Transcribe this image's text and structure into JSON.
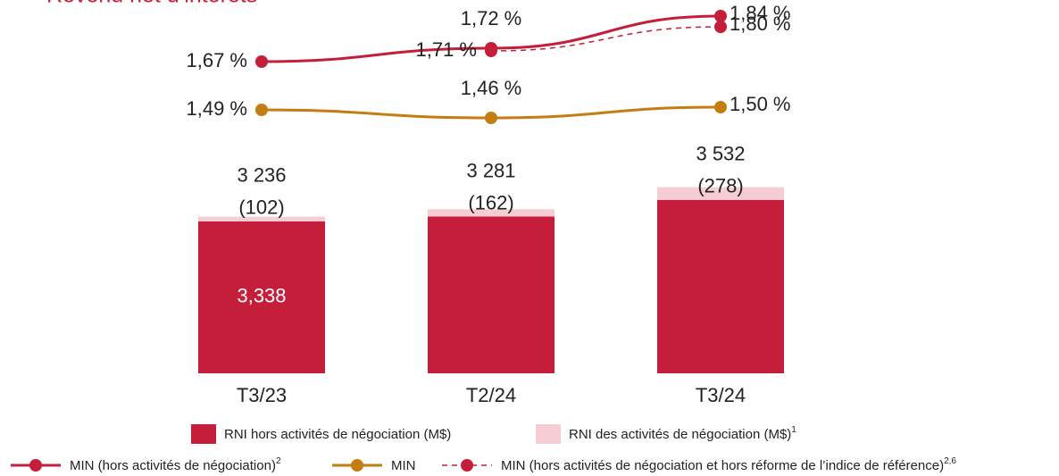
{
  "chart_data": {
    "type": "bar",
    "title": "Revenu net d’intérêts",
    "categories": [
      "T3/23",
      "T2/24",
      "T3/24"
    ],
    "ylim": [
      0,
      8200
    ],
    "y2lim": [
      1.1,
      1.9
    ],
    "series": [
      {
        "name": "RNI hors activités de négociation (M$)",
        "color": "#c41e3a",
        "values": [
          3338,
          3443,
          3810
        ],
        "value_labels": [
          "3,338",
          null,
          null
        ]
      },
      {
        "name": "RNI des activités de négociation (M$)",
        "footnote": "1",
        "color": "#f7cdd5",
        "values": [
          102,
          162,
          278
        ],
        "value_labels": [
          "(102)",
          "(162)",
          "(278)"
        ]
      }
    ],
    "totals": {
      "values": [
        3236,
        3281,
        3532
      ],
      "value_labels": [
        "3 236",
        "3 281",
        "3 532"
      ]
    },
    "lines": [
      {
        "name": "MIN (hors activités de négociation)",
        "footnote": "2",
        "color": "#c41e3a",
        "axis": "y2",
        "style": "solid",
        "values": [
          1.67,
          1.72,
          1.84
        ],
        "value_labels": [
          "1,67 %",
          "1,72 %",
          "1,84 %"
        ]
      },
      {
        "name": "MIN",
        "color": "#c47e0f",
        "axis": "y2",
        "style": "solid",
        "values": [
          1.49,
          1.46,
          1.5
        ],
        "value_labels": [
          "1,49 %",
          "1,46 %",
          "1,50 %"
        ]
      },
      {
        "name": "MIN (hors activités de négociation et hors réforme de l’indice de référence)",
        "footnote": "2,6",
        "color": "#c41e3a",
        "axis": "y2",
        "style": "dashed",
        "values": [
          null,
          1.71,
          1.8
        ],
        "value_labels": [
          null,
          "1,71 %",
          "1,80 %"
        ]
      }
    ]
  }
}
